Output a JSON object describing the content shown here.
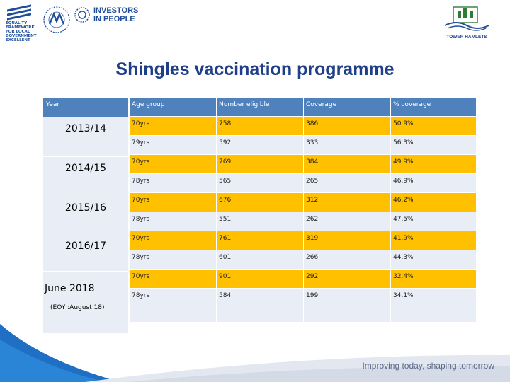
{
  "header": {
    "equality_logo_lines": [
      "EQUALITY",
      "FRAMEWORK",
      "FOR LOCAL",
      "GOVERNMENT",
      "EXCELLENT"
    ],
    "investors_logo": {
      "line1": "INVESTORS",
      "line2": "IN PEOPLE"
    },
    "tower_hamlets_label": "TOWER HAMLETS"
  },
  "title": "Shingles vaccination programme",
  "table": {
    "headers": [
      "Year",
      "Age group",
      "Number eligible",
      "Coverage",
      "% coverage"
    ],
    "years": [
      {
        "label": "2013/14",
        "sub": ""
      },
      {
        "label": "2014/15",
        "sub": ""
      },
      {
        "label": "2015/16",
        "sub": ""
      },
      {
        "label": "2016/17",
        "sub": ""
      },
      {
        "label": "June 2018",
        "sub": "(EOY :August 18)"
      }
    ],
    "rows": [
      [
        "70yrs",
        "758",
        "386",
        "50.9%"
      ],
      [
        "79yrs",
        "592",
        "333",
        "56.3%"
      ],
      [
        "70yrs",
        "769",
        "384",
        "49.9%"
      ],
      [
        "78yrs",
        "565",
        "265",
        "46.9%"
      ],
      [
        "70yrs",
        "676",
        "312",
        "46.2%"
      ],
      [
        "78yrs",
        "551",
        "262",
        "47.5%"
      ],
      [
        "70yrs",
        "761",
        "319",
        "41.9%"
      ],
      [
        "78yrs",
        "601",
        "266",
        "44.3%"
      ],
      [
        "70yrs",
        "901",
        "292",
        "32.4%"
      ],
      [
        "78yrs",
        "584",
        "199",
        "34.1%"
      ]
    ]
  },
  "footer": {
    "tagline": "Improving today, shaping tomorrow"
  },
  "colors": {
    "header_blue": "#4f81bd",
    "highlight": "#ffc000",
    "pale": "#e9edf5",
    "title": "#1f3f8a"
  }
}
